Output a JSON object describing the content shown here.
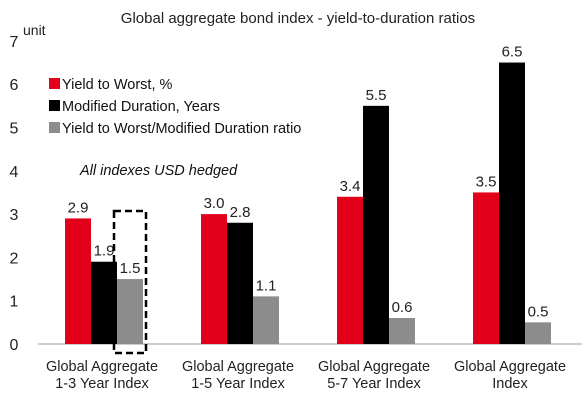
{
  "chart_data": {
    "type": "bar",
    "title": "Global aggregate bond index - yield-to-duration ratios",
    "ylabel": "unit",
    "xlabel": "",
    "ylim": [
      0,
      7
    ],
    "yticks": [
      "0",
      "1",
      "2",
      "3",
      "4",
      "5",
      "6",
      "7"
    ],
    "grid": false,
    "legend_position": "top-left",
    "categories": [
      [
        "Global Aggregate",
        "1-3 Year Index"
      ],
      [
        "Global Aggregate",
        "1-5 Year Index"
      ],
      [
        "Global Aggregate",
        "5-7 Year Index"
      ],
      [
        "Global Aggregate",
        "Index"
      ]
    ],
    "series": [
      {
        "name": "Yield to Worst, %",
        "color": "#e2001a",
        "values": [
          2.9,
          3.0,
          3.4,
          3.5
        ],
        "labels": [
          "2.9",
          "3.0",
          "3.4",
          "3.5"
        ]
      },
      {
        "name": "Modified Duration, Years",
        "color": "#000000",
        "values": [
          1.9,
          2.8,
          5.5,
          6.5
        ],
        "labels": [
          "1.9",
          "2.8",
          "5.5",
          "6.5"
        ]
      },
      {
        "name": "Yield to Worst/Modified Duration ratio",
        "color": "#8c8c8c",
        "values": [
          1.5,
          1.1,
          0.6,
          0.5
        ],
        "labels": [
          "1.5",
          "1.1",
          "0.6",
          "0.5"
        ]
      }
    ],
    "annotation": "All indexes USD hedged",
    "highlight": {
      "category_index": 0,
      "series_index": 2,
      "style": "dashed-box"
    }
  }
}
